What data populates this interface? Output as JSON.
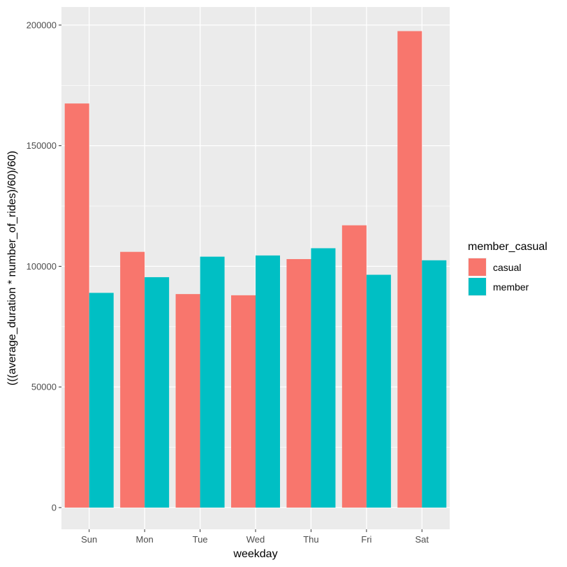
{
  "chart_data": {
    "type": "bar",
    "categories": [
      "Sun",
      "Mon",
      "Tue",
      "Wed",
      "Thu",
      "Fri",
      "Sat"
    ],
    "series": [
      {
        "name": "casual",
        "color": "#F8766D",
        "values": [
          167500,
          106000,
          88500,
          88000,
          103000,
          117000,
          197500
        ]
      },
      {
        "name": "member",
        "color": "#00BFC4",
        "values": [
          89000,
          95500,
          104000,
          104500,
          107500,
          96500,
          102500
        ]
      }
    ],
    "xlabel": "weekday",
    "ylabel": "(((average_duration * number_of_rides)/60)/60)",
    "ylim": [
      -9000,
      207500
    ],
    "yticks": [
      0,
      50000,
      100000,
      150000,
      200000
    ],
    "ytick_labels": [
      "0",
      "50000",
      "100000",
      "150000",
      "200000"
    ],
    "grid": true,
    "legend": {
      "title": "member_casual",
      "position": "right"
    },
    "panel_color": "#EBEBEB",
    "grid_color": "#FFFFFF"
  }
}
